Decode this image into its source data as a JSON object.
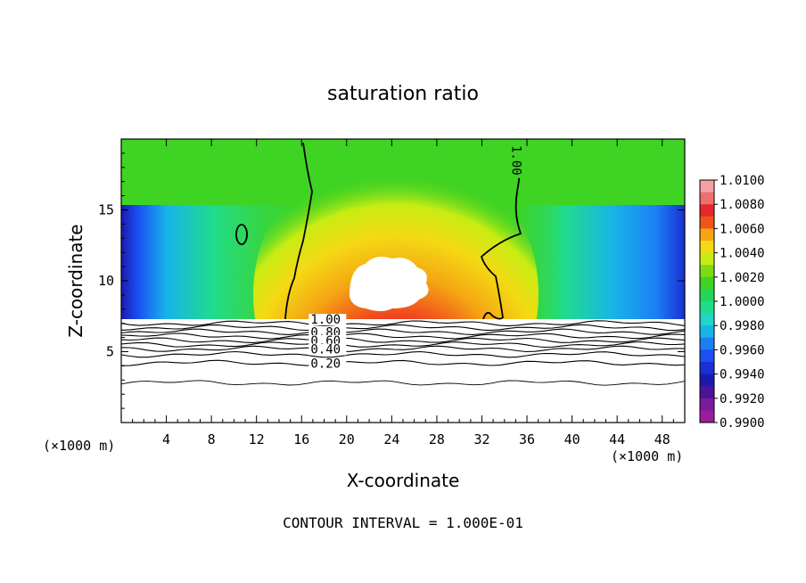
{
  "chart_data": {
    "type": "heatmap",
    "title": "saturation ratio",
    "xlabel": "X-coordinate",
    "ylabel": "Z-coordinate",
    "x_unit_left": "(×1000 m)",
    "x_unit_right": "(×1000 m)",
    "xlim": [
      0,
      50
    ],
    "ylim": [
      0,
      20
    ],
    "x_ticks": [
      4,
      8,
      12,
      16,
      20,
      24,
      28,
      32,
      36,
      40,
      44,
      48
    ],
    "y_ticks": [
      5,
      10,
      15
    ],
    "colorbar": {
      "min": 0.99,
      "max": 1.01,
      "labels": [
        "1.0100",
        "1.0080",
        "1.0060",
        "1.0040",
        "1.0020",
        "1.0000",
        "0.9980",
        "0.9960",
        "0.9940",
        "0.9920",
        "0.9900"
      ],
      "colors": [
        "#f4a0a6",
        "#ee6f6f",
        "#e82828",
        "#ef5518",
        "#f5a513",
        "#f4d914",
        "#c8ec13",
        "#7ddb14",
        "#3fd323",
        "#22d65a",
        "#20dc8c",
        "#1fd6c8",
        "#18b3ea",
        "#1c7ef4",
        "#1b4ef3",
        "#1a2fd4",
        "#1a1ab0",
        "#4a1398",
        "#7a1a9c",
        "#9b1c9e"
      ]
    },
    "contour_labels": [
      {
        "text": "1.00",
        "x": 16.8,
        "z": 7.1
      },
      {
        "text": "0.80",
        "x": 16.8,
        "z": 6.2
      },
      {
        "text": "0.60",
        "x": 16.8,
        "z": 5.6
      },
      {
        "text": "0.40",
        "x": 16.8,
        "z": 5.0
      },
      {
        "text": "0.20",
        "x": 16.8,
        "z": 4.0
      },
      {
        "text": "1.00",
        "x": 35.0,
        "z": 18.5
      }
    ],
    "lower_contours_z": [
      7.0,
      6.7,
      6.4,
      6.1,
      5.8,
      5.5,
      5.2,
      4.8,
      4.2,
      2.8
    ],
    "footer": "CONTOUR INTERVAL = 1.000E-01"
  }
}
